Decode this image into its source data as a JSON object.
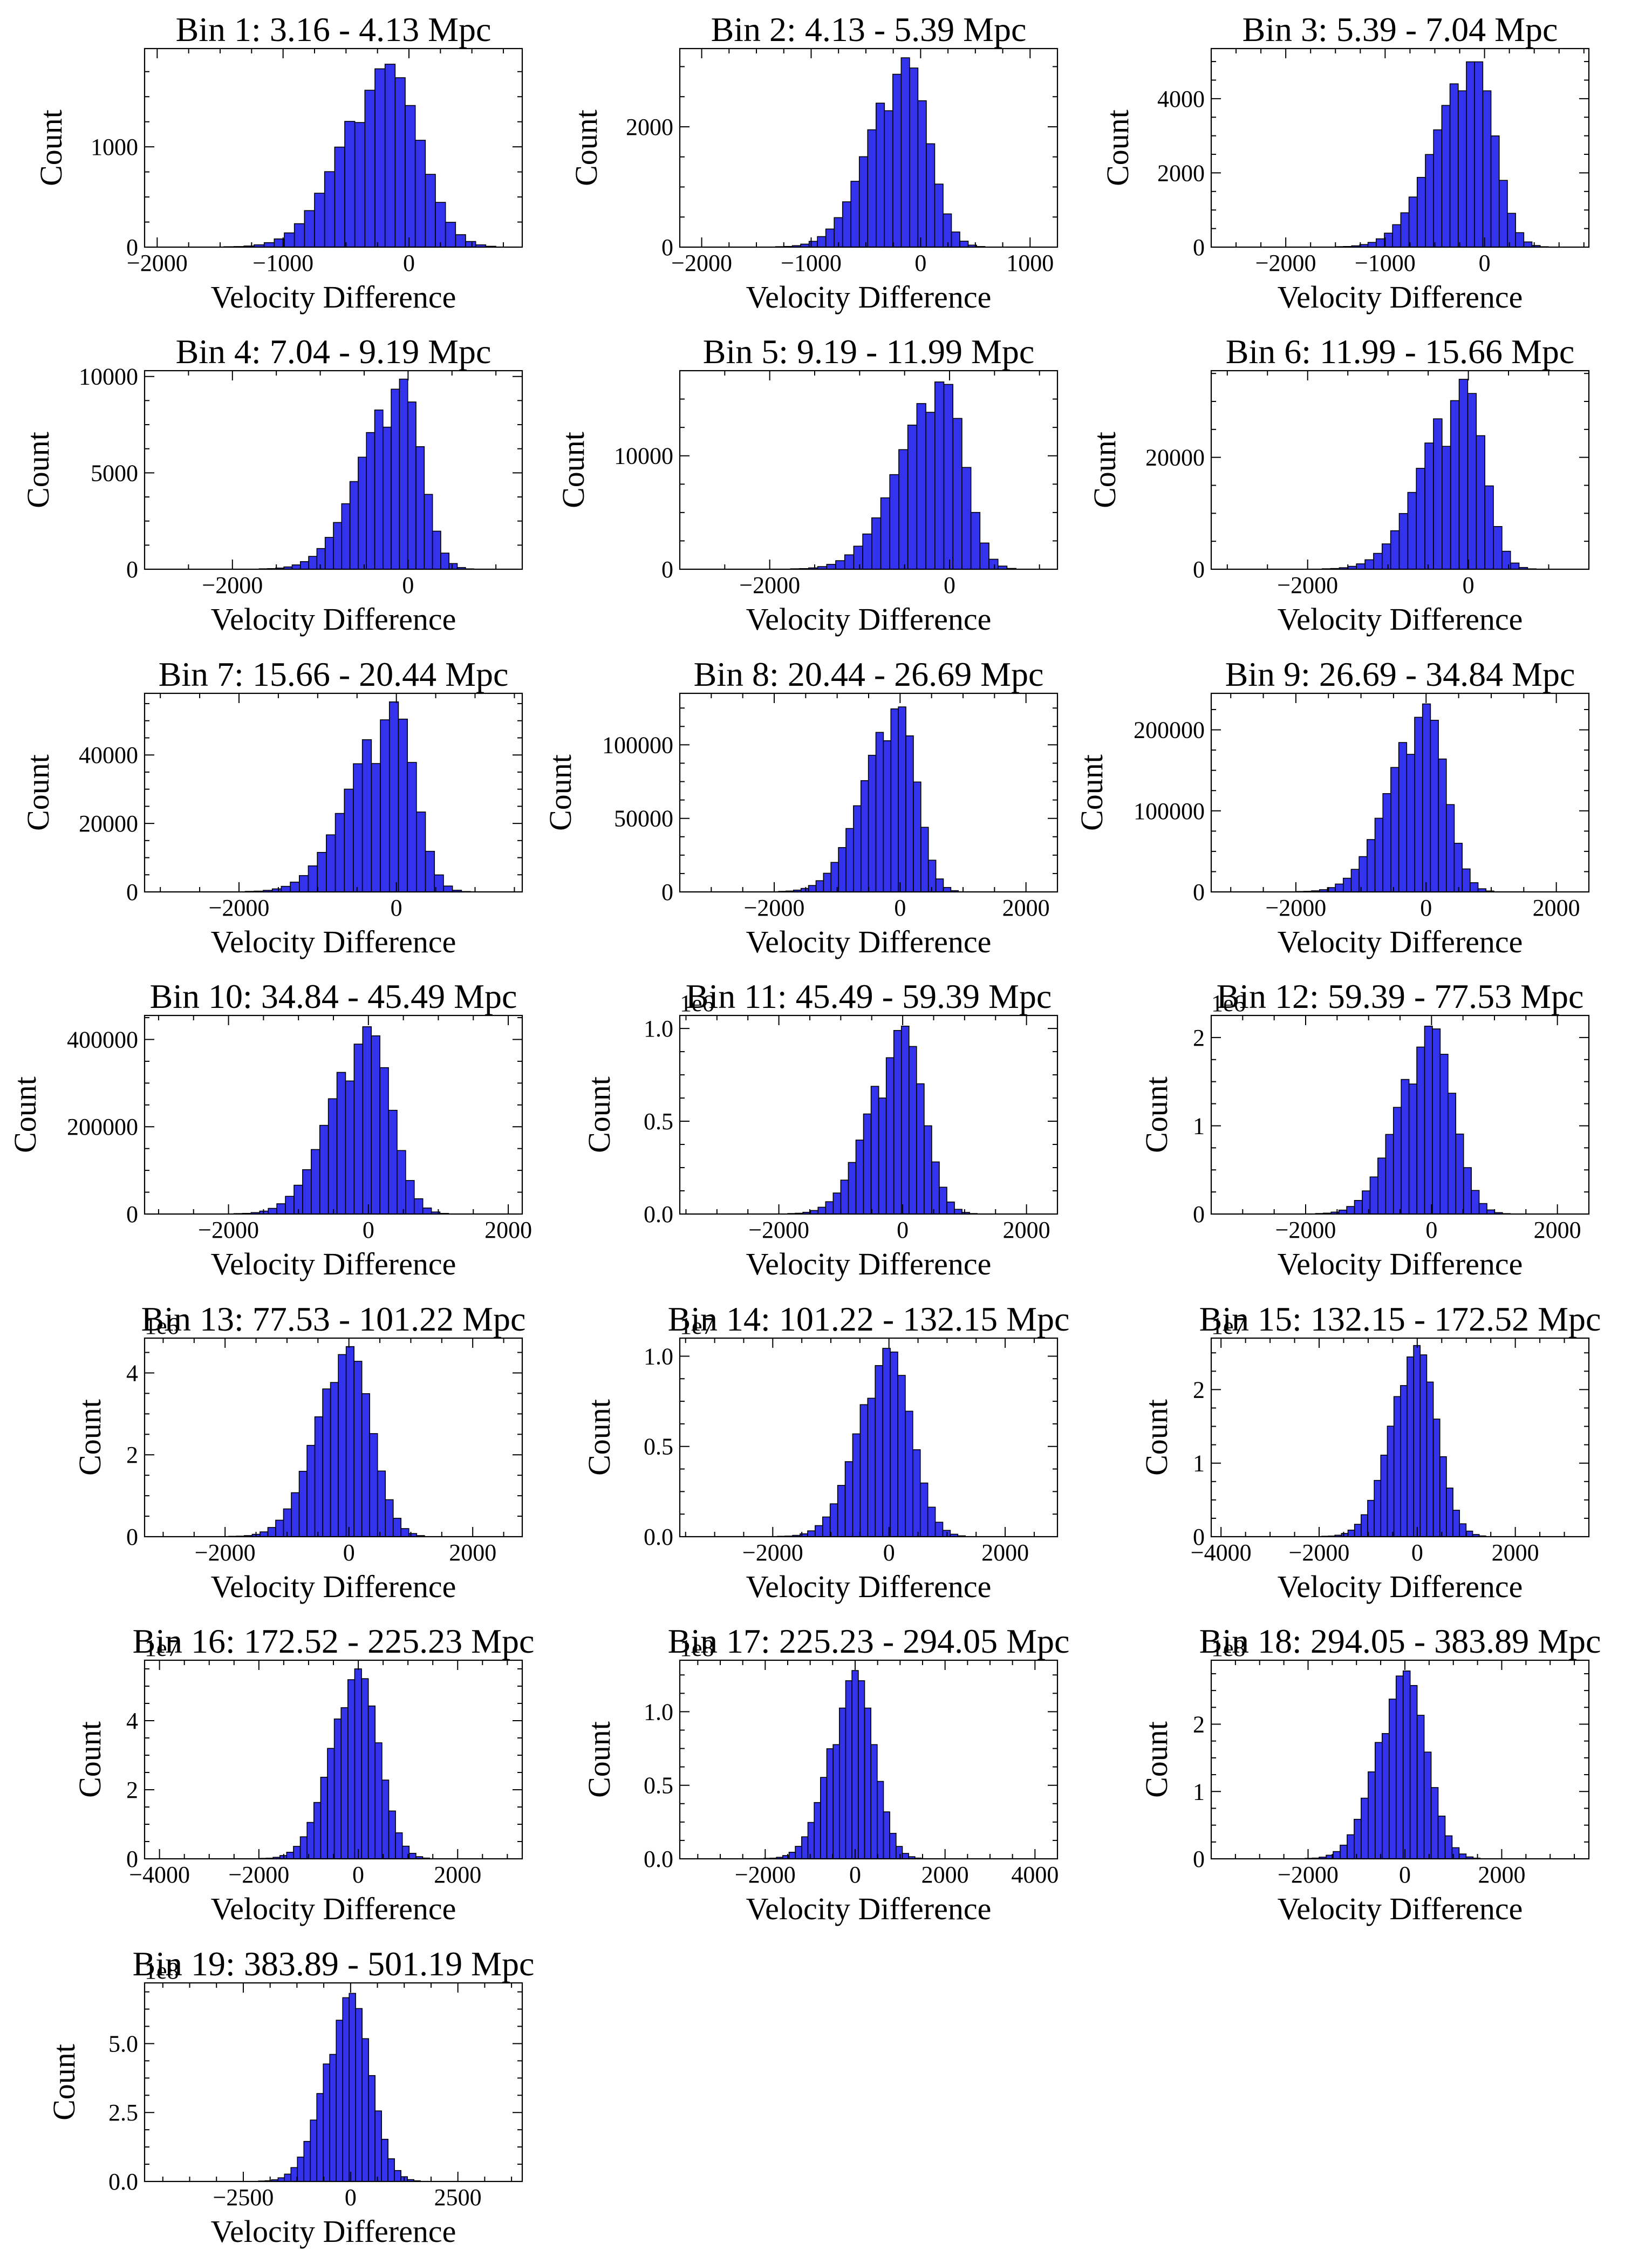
{
  "figure": {
    "bar_color": "#3333ee",
    "bar_edge": "#000000",
    "background": "#ffffff"
  },
  "chart_data": [
    {
      "type": "bar",
      "title": "Bin 1: 3.16 - 4.13 Mpc",
      "xlabel": "Velocity Difference",
      "ylabel": "Count",
      "offset_text": "",
      "xlim": [
        -2100,
        900
      ],
      "ylim": [
        0,
        1980
      ],
      "xticks": [
        -2000,
        -1000,
        0
      ],
      "xtick_labels": [
        "−2000",
        "−1000",
        "0"
      ],
      "yticks": [
        0,
        1000
      ],
      "ytick_labels": [
        "0",
        "1000"
      ],
      "peak": {
        "x": -170,
        "count": 1830
      },
      "core_sigma": 250,
      "left_tail_sigma": 300,
      "right_tail_sigma": 200
    },
    {
      "type": "bar",
      "title": "Bin 2: 4.13 - 5.39 Mpc",
      "xlabel": "Velocity Difference",
      "ylabel": "Count",
      "offset_text": "",
      "xlim": [
        -2200,
        1250
      ],
      "ylim": [
        0,
        3300
      ],
      "xticks": [
        -2000,
        -1000,
        0,
        1000
      ],
      "xtick_labels": [
        "−2000",
        "−1000",
        "0",
        "1000"
      ],
      "yticks": [
        0,
        2000
      ],
      "ytick_labels": [
        "0",
        "2000"
      ],
      "peak": {
        "x": -130,
        "count": 3150
      },
      "core_sigma": 200,
      "left_tail_sigma": 280,
      "right_tail_sigma": 200
    },
    {
      "type": "bar",
      "title": "Bin 3: 5.39 - 7.04 Mpc",
      "xlabel": "Velocity Difference",
      "ylabel": "Count",
      "offset_text": "",
      "xlim": [
        -2750,
        1050
      ],
      "ylim": [
        0,
        5350
      ],
      "xticks": [
        -2000,
        -1000,
        0
      ],
      "xtick_labels": [
        "−2000",
        "−1000",
        "0"
      ],
      "yticks": [
        0,
        2000,
        4000
      ],
      "ytick_labels": [
        "0",
        "2000",
        "4000"
      ],
      "peak": {
        "x": -100,
        "count": 5100
      },
      "core_sigma": 200,
      "left_tail_sigma": 330,
      "right_tail_sigma": 180
    },
    {
      "type": "bar",
      "title": "Bin 4: 7.04 - 9.19 Mpc",
      "xlabel": "Velocity Difference",
      "ylabel": "Count",
      "offset_text": "",
      "xlim": [
        -3000,
        1300
      ],
      "ylim": [
        0,
        10300
      ],
      "xticks": [
        -2000,
        0
      ],
      "xtick_labels": [
        "−2000",
        "0"
      ],
      "yticks": [
        0,
        5000,
        10000
      ],
      "ytick_labels": [
        "0",
        "5000",
        "10000"
      ],
      "peak": {
        "x": -70,
        "count": 9900
      },
      "core_sigma": 220,
      "left_tail_sigma": 380,
      "right_tail_sigma": 200
    },
    {
      "type": "bar",
      "title": "Bin 5: 9.19 - 11.99 Mpc",
      "xlabel": "Velocity Difference",
      "ylabel": "Count",
      "offset_text": "",
      "xlim": [
        -3000,
        1200
      ],
      "ylim": [
        0,
        17500
      ],
      "xticks": [
        -2000,
        0
      ],
      "xtick_labels": [
        "−2000",
        "0"
      ],
      "yticks": [
        0,
        10000
      ],
      "ytick_labels": [
        "0",
        "10000"
      ],
      "peak": {
        "x": -70,
        "count": 16800
      },
      "core_sigma": 230,
      "left_tail_sigma": 400,
      "right_tail_sigma": 220
    },
    {
      "type": "bar",
      "title": "Bin 6: 11.99 - 15.66 Mpc",
      "xlabel": "Velocity Difference",
      "ylabel": "Count",
      "offset_text": "",
      "xlim": [
        -3200,
        1500
      ],
      "ylim": [
        0,
        35500
      ],
      "xticks": [
        -2000,
        0
      ],
      "xtick_labels": [
        "−2000",
        "0"
      ],
      "yticks": [
        0,
        20000
      ],
      "ytick_labels": [
        "0",
        "20000"
      ],
      "peak": {
        "x": -50,
        "count": 34000
      },
      "core_sigma": 240,
      "left_tail_sigma": 420,
      "right_tail_sigma": 240
    },
    {
      "type": "bar",
      "title": "Bin 7: 15.66 - 20.44 Mpc",
      "xlabel": "Velocity Difference",
      "ylabel": "Count",
      "offset_text": "",
      "xlim": [
        -3200,
        1600
      ],
      "ylim": [
        0,
        58000
      ],
      "xticks": [
        -2000,
        0
      ],
      "xtick_labels": [
        "−2000",
        "0"
      ],
      "yticks": [
        0,
        20000,
        40000
      ],
      "ytick_labels": [
        "0",
        "20000",
        "40000"
      ],
      "peak": {
        "x": -30,
        "count": 55500
      },
      "core_sigma": 260,
      "left_tail_sigma": 450,
      "right_tail_sigma": 260
    },
    {
      "type": "bar",
      "title": "Bin 8: 20.44 - 26.69 Mpc",
      "xlabel": "Velocity Difference",
      "ylabel": "Count",
      "offset_text": "",
      "xlim": [
        -3500,
        2500
      ],
      "ylim": [
        0,
        135000
      ],
      "xticks": [
        -2000,
        0,
        2000
      ],
      "xtick_labels": [
        "−2000",
        "0",
        "2000"
      ],
      "yticks": [
        0,
        50000,
        100000
      ],
      "ytick_labels": [
        "0",
        "50000",
        "100000"
      ],
      "peak": {
        "x": -20,
        "count": 128000
      },
      "core_sigma": 280,
      "left_tail_sigma": 460,
      "right_tail_sigma": 280
    },
    {
      "type": "bar",
      "title": "Bin 9: 26.69 - 34.84 Mpc",
      "xlabel": "Velocity Difference",
      "ylabel": "Count",
      "offset_text": "",
      "xlim": [
        -3300,
        2500
      ],
      "ylim": [
        0,
        245000
      ],
      "xticks": [
        -2000,
        0,
        2000
      ],
      "xtick_labels": [
        "−2000",
        "0",
        "2000"
      ],
      "yticks": [
        0,
        100000,
        200000
      ],
      "ytick_labels": [
        "0",
        "100000",
        "200000"
      ],
      "peak": {
        "x": 0,
        "count": 232000
      },
      "core_sigma": 300,
      "left_tail_sigma": 460,
      "right_tail_sigma": 300
    },
    {
      "type": "bar",
      "title": "Bin 10: 34.84 - 45.49 Mpc",
      "xlabel": "Velocity Difference",
      "ylabel": "Count",
      "offset_text": "",
      "xlim": [
        -3200,
        2200
      ],
      "ylim": [
        0,
        455000
      ],
      "xticks": [
        -2000,
        0,
        2000
      ],
      "xtick_labels": [
        "−2000",
        "0",
        "2000"
      ],
      "yticks": [
        0,
        200000,
        400000
      ],
      "ytick_labels": [
        "0",
        "200000",
        "400000"
      ],
      "peak": {
        "x": 0,
        "count": 430000
      },
      "core_sigma": 320,
      "left_tail_sigma": 450,
      "right_tail_sigma": 320
    },
    {
      "type": "bar",
      "title": "Bin 11: 45.49 - 59.39 Mpc",
      "xlabel": "Velocity Difference",
      "ylabel": "Count",
      "offset_text": "1e6",
      "xlim": [
        -3600,
        2500
      ],
      "ylim": [
        0,
        1.07
      ],
      "xticks": [
        -2000,
        0,
        2000
      ],
      "xtick_labels": [
        "−2000",
        "0",
        "2000"
      ],
      "yticks": [
        0,
        0.5,
        1.0
      ],
      "ytick_labels": [
        "0.0",
        "0.5",
        "1.0"
      ],
      "peak": {
        "x": 0,
        "count": 1.02
      },
      "core_sigma": 330,
      "left_tail_sigma": 440,
      "right_tail_sigma": 330
    },
    {
      "type": "bar",
      "title": "Bin 12: 59.39 - 77.53 Mpc",
      "xlabel": "Velocity Difference",
      "ylabel": "Count",
      "offset_text": "1e6",
      "xlim": [
        -3500,
        2500
      ],
      "ylim": [
        0,
        2.25
      ],
      "xticks": [
        -2000,
        0,
        2000
      ],
      "xtick_labels": [
        "−2000",
        "0",
        "2000"
      ],
      "yticks": [
        0,
        1,
        2
      ],
      "ytick_labels": [
        "0",
        "1",
        "2"
      ],
      "peak": {
        "x": 0,
        "count": 2.15
      },
      "core_sigma": 340,
      "left_tail_sigma": 440,
      "right_tail_sigma": 340
    },
    {
      "type": "bar",
      "title": "Bin 13: 77.53 - 101.22 Mpc",
      "xlabel": "Velocity Difference",
      "ylabel": "Count",
      "offset_text": "1e6",
      "xlim": [
        -3300,
        2800
      ],
      "ylim": [
        0,
        4.85
      ],
      "xticks": [
        -2000,
        0,
        2000
      ],
      "xtick_labels": [
        "−2000",
        "0",
        "2000"
      ],
      "yticks": [
        0,
        2,
        4
      ],
      "ytick_labels": [
        "0",
        "2",
        "4"
      ],
      "peak": {
        "x": 0,
        "count": 4.65
      },
      "core_sigma": 360,
      "left_tail_sigma": 440,
      "right_tail_sigma": 360
    },
    {
      "type": "bar",
      "title": "Bin 14: 101.22 - 132.15 Mpc",
      "xlabel": "Velocity Difference",
      "ylabel": "Count",
      "offset_text": "1e7",
      "xlim": [
        -3600,
        2900
      ],
      "ylim": [
        0,
        1.1
      ],
      "xticks": [
        -2000,
        0,
        2000
      ],
      "xtick_labels": [
        "−2000",
        "0",
        "2000"
      ],
      "yticks": [
        0,
        0.5,
        1.0
      ],
      "ytick_labels": [
        "0.0",
        "0.5",
        "1.0"
      ],
      "peak": {
        "x": 0,
        "count": 1.05
      },
      "core_sigma": 380,
      "left_tail_sigma": 440,
      "right_tail_sigma": 380
    },
    {
      "type": "bar",
      "title": "Bin 15: 132.15 - 172.52 Mpc",
      "xlabel": "Velocity Difference",
      "ylabel": "Count",
      "offset_text": "1e7",
      "xlim": [
        -4200,
        3500
      ],
      "ylim": [
        0,
        2.7
      ],
      "xticks": [
        -4000,
        -2000,
        0,
        2000
      ],
      "xtick_labels": [
        "−4000",
        "−2000",
        "0",
        "2000"
      ],
      "yticks": [
        0,
        1,
        2
      ],
      "ytick_labels": [
        "0",
        "1",
        "2"
      ],
      "peak": {
        "x": 0,
        "count": 2.6
      },
      "core_sigma": 400,
      "left_tail_sigma": 450,
      "right_tail_sigma": 400
    },
    {
      "type": "bar",
      "title": "Bin 16: 172.52 - 225.23 Mpc",
      "xlabel": "Velocity Difference",
      "ylabel": "Count",
      "offset_text": "1e7",
      "xlim": [
        -4300,
        3300
      ],
      "ylim": [
        0,
        5.75
      ],
      "xticks": [
        -4000,
        -2000,
        0,
        2000
      ],
      "xtick_labels": [
        "−4000",
        "−2000",
        "0",
        "2000"
      ],
      "yticks": [
        0,
        2,
        4
      ],
      "ytick_labels": [
        "0",
        "2",
        "4"
      ],
      "peak": {
        "x": 0,
        "count": 5.5
      },
      "core_sigma": 410,
      "left_tail_sigma": 460,
      "right_tail_sigma": 410
    },
    {
      "type": "bar",
      "title": "Bin 17: 225.23 - 294.05 Mpc",
      "xlabel": "Velocity Difference",
      "ylabel": "Count",
      "offset_text": "1e8",
      "xlim": [
        -3900,
        4500
      ],
      "ylim": [
        0,
        1.35
      ],
      "xticks": [
        -2000,
        0,
        2000,
        4000
      ],
      "xtick_labels": [
        "−2000",
        "0",
        "2000",
        "4000"
      ],
      "yticks": [
        0,
        0.5,
        1.0
      ],
      "ytick_labels": [
        "0.0",
        "0.5",
        "1.0"
      ],
      "peak": {
        "x": 0,
        "count": 1.28
      },
      "core_sigma": 420,
      "left_tail_sigma": 470,
      "right_tail_sigma": 420
    },
    {
      "type": "bar",
      "title": "Bin 18: 294.05 - 383.89 Mpc",
      "xlabel": "Velocity Difference",
      "ylabel": "Count",
      "offset_text": "1e8",
      "xlim": [
        -4000,
        3800
      ],
      "ylim": [
        0,
        2.95
      ],
      "xticks": [
        -2000,
        0,
        2000
      ],
      "xtick_labels": [
        "−2000",
        "0",
        "2000"
      ],
      "yticks": [
        0,
        1,
        2
      ],
      "ytick_labels": [
        "0",
        "1",
        "2"
      ],
      "peak": {
        "x": 0,
        "count": 2.8
      },
      "core_sigma": 440,
      "left_tail_sigma": 480,
      "right_tail_sigma": 440
    },
    {
      "type": "bar",
      "title": "Bin 19: 383.89 - 501.19 Mpc",
      "xlabel": "Velocity Difference",
      "ylabel": "Count",
      "offset_text": "1e8",
      "xlim": [
        -4800,
        4000
      ],
      "ylim": [
        0,
        7.2
      ],
      "xticks": [
        -2500,
        0,
        2500
      ],
      "xtick_labels": [
        "−2500",
        "0",
        "2500"
      ],
      "yticks": [
        0,
        2.5,
        5.0
      ],
      "ytick_labels": [
        "0.0",
        "2.5",
        "5.0"
      ],
      "peak": {
        "x": 0,
        "count": 6.85
      },
      "core_sigma": 460,
      "left_tail_sigma": 500,
      "right_tail_sigma": 460
    }
  ]
}
